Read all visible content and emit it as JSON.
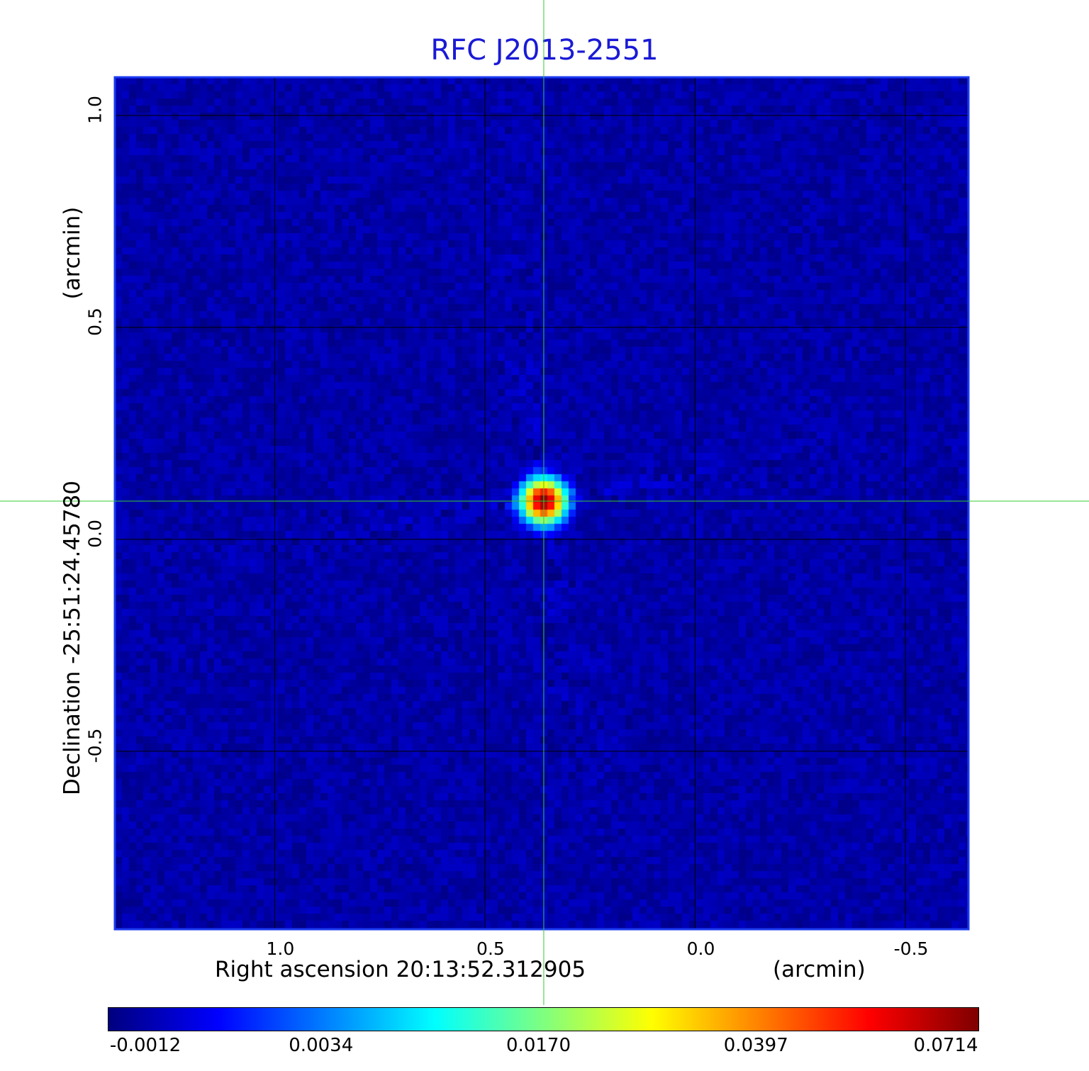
{
  "chart_data": {
    "type": "heatmap",
    "title": "RFC J2013-2551",
    "xlabel": "Right ascension  20:13:52.312905",
    "xlabel_unit": "(arcmin)",
    "ylabel": "Declination  -25:51:24.45780",
    "ylabel_unit": "(arcmin)",
    "xlim": [
      1.38,
      -0.65
    ],
    "ylim": [
      -0.92,
      1.09
    ],
    "x_ticks": [
      {
        "value": 1.0,
        "label": "1.0"
      },
      {
        "value": 0.5,
        "label": "0.5"
      },
      {
        "value": 0.0,
        "label": "0.0"
      },
      {
        "value": -0.5,
        "label": "-0.5"
      }
    ],
    "y_ticks": [
      {
        "value": 1.0,
        "label": "1.0"
      },
      {
        "value": 0.5,
        "label": "0.5"
      },
      {
        "value": 0.0,
        "label": "0.0"
      },
      {
        "value": -0.5,
        "label": "-0.5"
      }
    ],
    "grid": true,
    "colormap": "jet",
    "colorbar": {
      "ticks": [
        "-0.0012",
        "0.0034",
        "0.0170",
        "0.0397",
        "0.0714"
      ]
    },
    "source": {
      "x": 0.36,
      "y": 0.09,
      "peak": 0.0714
    },
    "background_level": -0.0005,
    "crosshair": {
      "x": 0.36,
      "y": 0.09,
      "color": "#33cc33"
    },
    "colors": {
      "title": "#1a1ad6",
      "frame": "#1a3af0",
      "grid": "#000000"
    }
  }
}
